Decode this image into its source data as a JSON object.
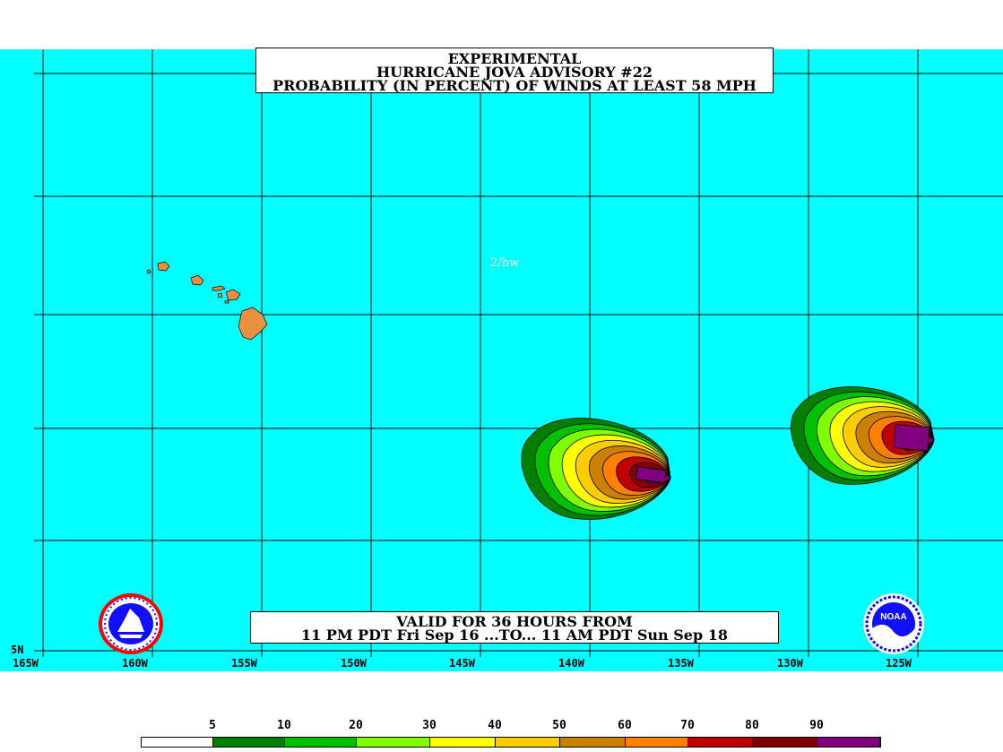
{
  "title": {
    "line1": "EXPERIMENTAL",
    "line2": "HURRICANE JOVA ADVISORY #22",
    "line3": "PROBABILITY (IN PERCENT) OF WINDS AT LEAST 58 MPH"
  },
  "valid": {
    "line1": "VALID FOR 36 HOURS FROM",
    "line2": "11 PM PDT Fri Sep 16 ...TO... 11 AM PDT Sun Sep 18"
  },
  "credit": "2/hw",
  "lat_label": "5N",
  "lon_labels": [
    "165W",
    "160W",
    "155W",
    "150W",
    "145W",
    "140W",
    "135W",
    "130W",
    "125W"
  ],
  "legend": {
    "labels": [
      "5",
      "10",
      "20",
      "30",
      "40",
      "50",
      "60",
      "70",
      "80",
      "90"
    ],
    "colors": [
      "#ffffff",
      "#008000",
      "#00c000",
      "#80ff00",
      "#ffff00",
      "#ffcc00",
      "#cc8000",
      "#ff8000",
      "#c00000",
      "#800000",
      "#800080"
    ]
  },
  "colors": {
    "ocean": "#00ffff",
    "land": "#e89040",
    "grid": "#000000"
  },
  "icons": [
    "nws-logo-icon",
    "noaa-logo-icon"
  ],
  "logo_text": {
    "noaa": "NOAA"
  }
}
